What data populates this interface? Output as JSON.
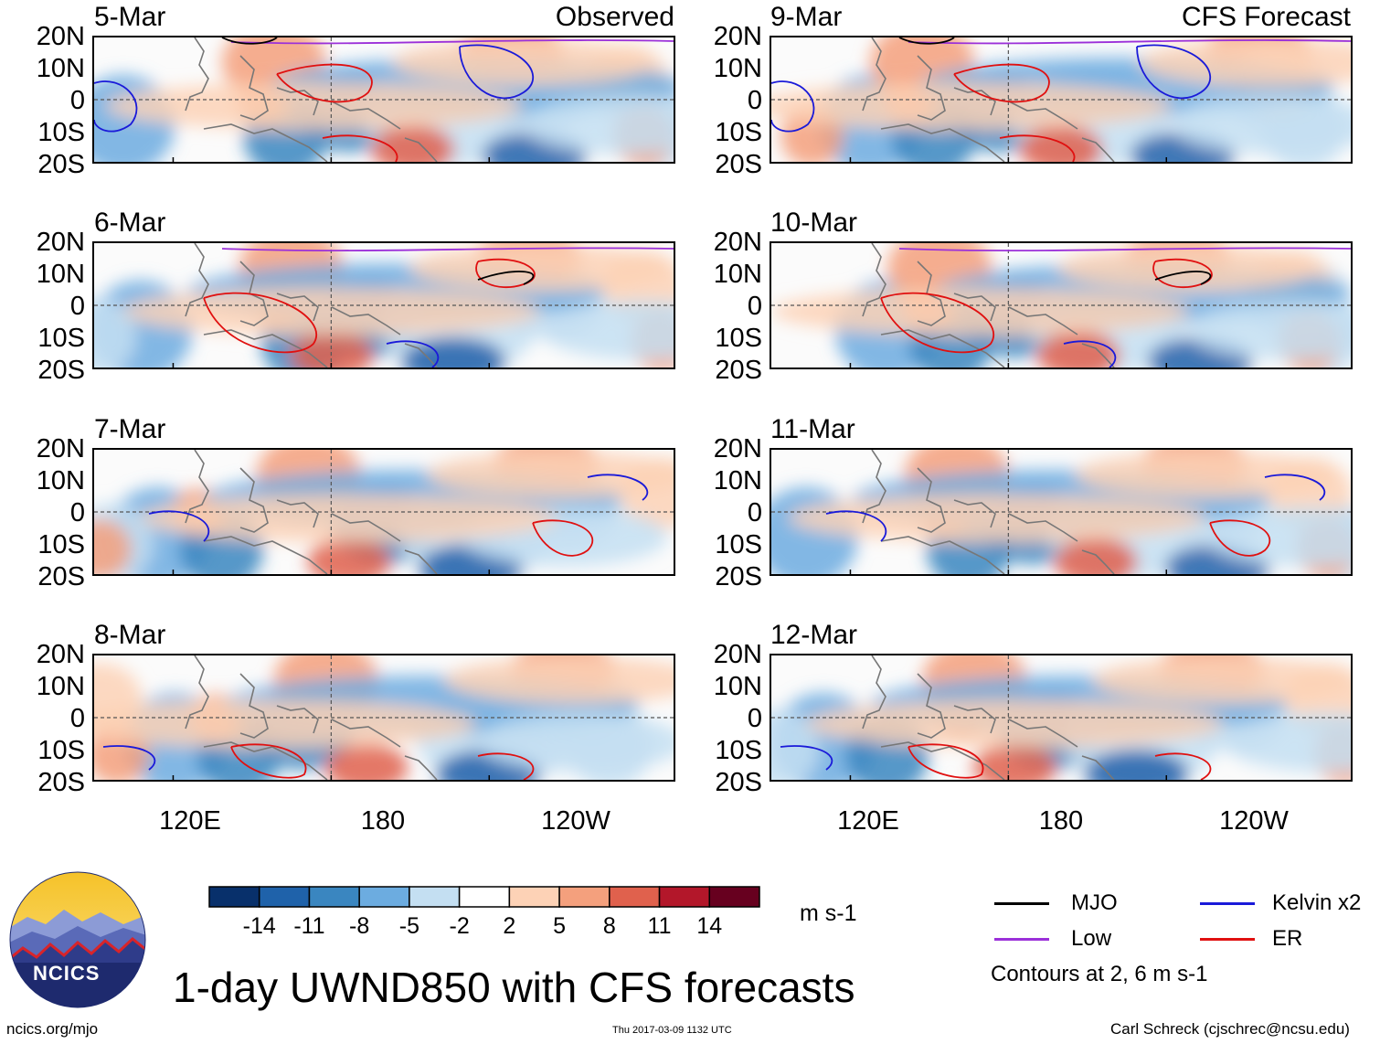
{
  "header": {
    "observed_label": "Observed",
    "forecast_label": "CFS Forecast"
  },
  "panels": {
    "left": [
      {
        "date": "5-Mar"
      },
      {
        "date": "6-Mar"
      },
      {
        "date": "7-Mar"
      },
      {
        "date": "8-Mar"
      }
    ],
    "right": [
      {
        "date": "9-Mar"
      },
      {
        "date": "10-Mar"
      },
      {
        "date": "11-Mar"
      },
      {
        "date": "12-Mar"
      }
    ]
  },
  "latitude_labels": [
    "20N",
    "10N",
    "0",
    "10S",
    "20S"
  ],
  "longitude_labels": [
    "120E",
    "180",
    "120W"
  ],
  "colorbar": {
    "ticks": [
      "-14",
      "-11",
      "-8",
      "-5",
      "-2",
      "2",
      "5",
      "8",
      "11",
      "14"
    ],
    "colors": [
      "#08306b",
      "#1f62aa",
      "#3a86c0",
      "#6cace0",
      "#c4dff2",
      "#ffffff",
      "#fdd2b6",
      "#f4a07d",
      "#e0614d",
      "#b3172a",
      "#67001f"
    ],
    "units": "m s-1"
  },
  "legend": {
    "mjo": {
      "label": "MJO",
      "color": "#000000"
    },
    "low": {
      "label": "Low",
      "color": "#9b30d9"
    },
    "kelvin": {
      "label": "Kelvin x2",
      "color": "#1a1ad9"
    },
    "er": {
      "label": "ER",
      "color": "#e01010"
    },
    "contours_note": "Contours at 2, 6 m s-1"
  },
  "logo": {
    "text": "NCICS"
  },
  "title": "1-day UWND850 with CFS forecasts",
  "footer": {
    "website": "ncics.org/mjo",
    "timestamp": "Thu 2017-03-09 1132 UTC",
    "author": "Carl Schreck (cjschrec@ncsu.edu)"
  }
}
